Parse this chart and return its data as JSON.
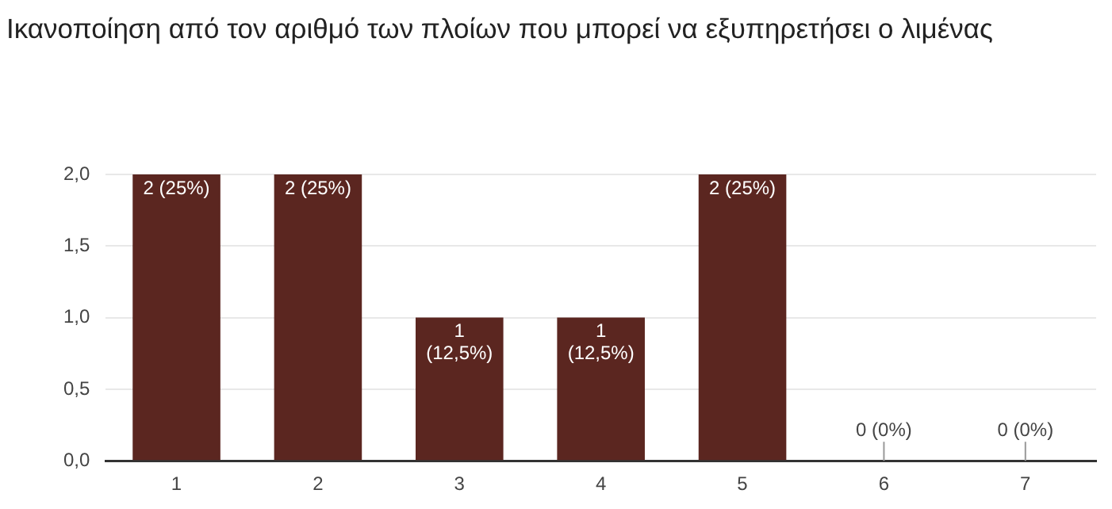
{
  "chart_data": {
    "type": "bar",
    "title": "Ικανοποίηση από τον αριθμό των πλοίων που μπορεί να εξυπηρετήσει ο λιμένας",
    "categories": [
      "1",
      "2",
      "3",
      "4",
      "5",
      "6",
      "7"
    ],
    "values": [
      2,
      2,
      1,
      1,
      2,
      0,
      0
    ],
    "value_labels": [
      "2 (25%)",
      "2 (25%)",
      "1 (12,5%)",
      "1 (12,5%)",
      "2 (25%)",
      "0 (0%)",
      "0 (0%)"
    ],
    "color": "#5b2620",
    "ylim": [
      0,
      2
    ],
    "yticks": [
      {
        "value": 0,
        "label": "0,0"
      },
      {
        "value": 0.5,
        "label": "0,5"
      },
      {
        "value": 1,
        "label": "1,0"
      },
      {
        "value": 1.5,
        "label": "1,5"
      },
      {
        "value": 2,
        "label": "2,0"
      }
    ],
    "grid": "y"
  }
}
